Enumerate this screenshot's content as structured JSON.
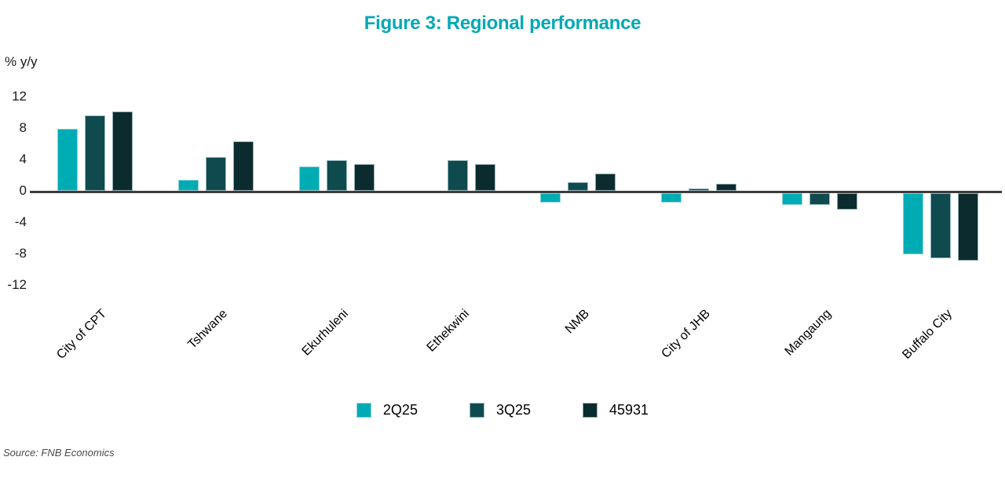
{
  "header": {
    "title": "Figure 3: Regional performance"
  },
  "source": "Source: FNB Economics",
  "colors": {
    "title": "#00A9B4",
    "axis_line": "#3d3d3d",
    "tick_text": "#1a1a1a",
    "source_text": "#4a4a4a",
    "background": "#ffffff"
  },
  "chart_data": {
    "type": "bar",
    "title": "Figure 3: Regional performance",
    "ylabel": "% y/y",
    "xlabel": "",
    "ylim": [
      -12,
      12
    ],
    "yticks": [
      12,
      8,
      4,
      0,
      -4,
      -8,
      -12
    ],
    "grid": false,
    "legend_position": "bottom-center",
    "categories": [
      "City of CPT",
      "Tshwane",
      "Ekurhuleni",
      "Ethekwini",
      "NMB",
      "City of JHB",
      "Mangaung",
      "Buffalo City"
    ],
    "series": [
      {
        "name": "2Q25",
        "color": "#00ACB4",
        "values": [
          7.9,
          1.4,
          3.1,
          0,
          -1.2,
          -1.2,
          -1.5,
          -7.8
        ]
      },
      {
        "name": "3Q25",
        "color": "#0F4A4F",
        "values": [
          9.6,
          4.3,
          3.9,
          3.9,
          1.1,
          0.3,
          -1.5,
          -8.3
        ]
      },
      {
        "name": "45931",
        "color": "#0B2B2E",
        "values": [
          10.1,
          6.3,
          3.4,
          3.4,
          2.2,
          0.9,
          -2.1,
          -8.6
        ]
      }
    ]
  }
}
